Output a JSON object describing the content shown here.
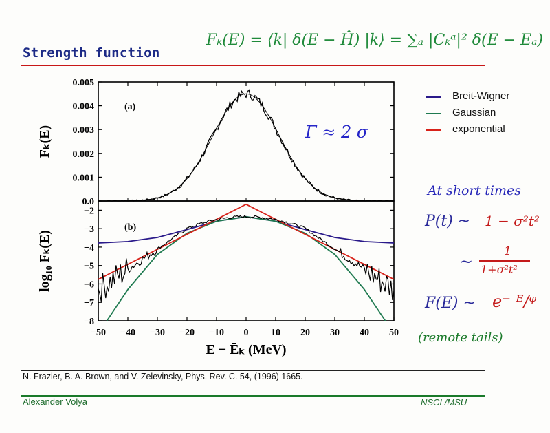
{
  "slide": {
    "title": "Strength function",
    "formula": "Fₖ(E) = ⟨k| δ(E − Ĥ) |k⟩ = ∑ₐ |Cₖᵃ|² δ(E − Eₐ)",
    "reference": "N. Frazier, B. A. Brown, and V. Zelevinsky, Phys. Rev. C. 54, (1996) 1665.",
    "author": "Alexander Volya",
    "institution": "NSCL/MSU",
    "colors": {
      "title": "#1c2a86",
      "rule": "#c81818",
      "footer": "#1a6a2a"
    }
  },
  "annotations": {
    "gamma": "Γ ≈ 2 σ",
    "short_times": "At short times",
    "p_lhs": "P(t) ~",
    "p_rhs": "1 − σ²t²",
    "tilde": "~",
    "frac_num": "1",
    "frac_den": "1+σ²t²",
    "f_lhs": "F(E) ~",
    "f_rhs": "e⁻ ᴱ/ᵠ",
    "tails": "(remote tails)"
  },
  "legend": [
    {
      "label": "Breit-Wigner",
      "color": "#2a1a8a"
    },
    {
      "label": "Gaussian",
      "color": "#1f7a50"
    },
    {
      "label": "exponential",
      "color": "#d8221a"
    }
  ],
  "chart_data": [
    {
      "type": "line",
      "panel_label": "(a)",
      "ylabel": "Fₖ(E)",
      "xlim": [
        -50,
        50
      ],
      "ylim": [
        0,
        0.005
      ],
      "yticks": [
        "0.0",
        "0.001",
        "0.002",
        "0.003",
        "0.004",
        "0.005"
      ],
      "ytick_values": [
        0,
        0.001,
        0.002,
        0.003,
        0.004,
        0.005
      ],
      "series": [
        {
          "kind": "histogram",
          "sigma": 11.3,
          "peak": 0.0045,
          "color": "#000000"
        }
      ]
    },
    {
      "type": "line",
      "panel_label": "(b)",
      "ylabel": "log₁₀ Fₖ(E)",
      "xlabel": "E − Ēₖ (MeV)",
      "xlim": [
        -50,
        50
      ],
      "ylim": [
        -8,
        -1.5
      ],
      "xticks": [
        "−50",
        "−40",
        "−30",
        "−20",
        "−10",
        "0",
        "10",
        "20",
        "30",
        "40",
        "50"
      ],
      "xtick_values": [
        -50,
        -40,
        -30,
        -20,
        -10,
        0,
        10,
        20,
        30,
        40,
        50
      ],
      "yticks": [
        "−2",
        "−3",
        "−4",
        "−5",
        "−6",
        "−7",
        "−8"
      ],
      "ytick_values": [
        -2,
        -3,
        -4,
        -5,
        -6,
        -7,
        -8
      ],
      "series": [
        {
          "name": "Breit-Wigner",
          "color": "#2a1a8a",
          "x": [
            -50,
            -40,
            -30,
            -20,
            -10,
            0,
            10,
            20,
            30,
            40,
            50
          ],
          "y": [
            -3.78,
            -3.7,
            -3.48,
            -3.05,
            -2.6,
            -2.35,
            -2.6,
            -3.05,
            -3.48,
            -3.7,
            -3.78
          ]
        },
        {
          "name": "Gaussian",
          "color": "#1f7a50",
          "x": [
            -50,
            -40,
            -30,
            -20,
            -10,
            0,
            10,
            20,
            30,
            40,
            50
          ],
          "y": [
            -8.7,
            -6.3,
            -4.4,
            -3.25,
            -2.6,
            -2.35,
            -2.6,
            -3.25,
            -4.4,
            -6.3,
            -8.7
          ]
        },
        {
          "name": "exponential",
          "color": "#d8221a",
          "x": [
            -50,
            0,
            50
          ],
          "y": [
            -5.75,
            -1.68,
            -5.75
          ]
        },
        {
          "kind": "histogram",
          "color": "#000000",
          "x": [
            -50,
            -40,
            -30,
            -20,
            -10,
            0,
            10,
            20,
            30,
            40,
            50
          ],
          "y": [
            -6.3,
            -5.4,
            -4.3,
            -3.25,
            -2.6,
            -2.35,
            -2.6,
            -3.25,
            -4.3,
            -5.4,
            -6.3
          ]
        }
      ]
    }
  ]
}
